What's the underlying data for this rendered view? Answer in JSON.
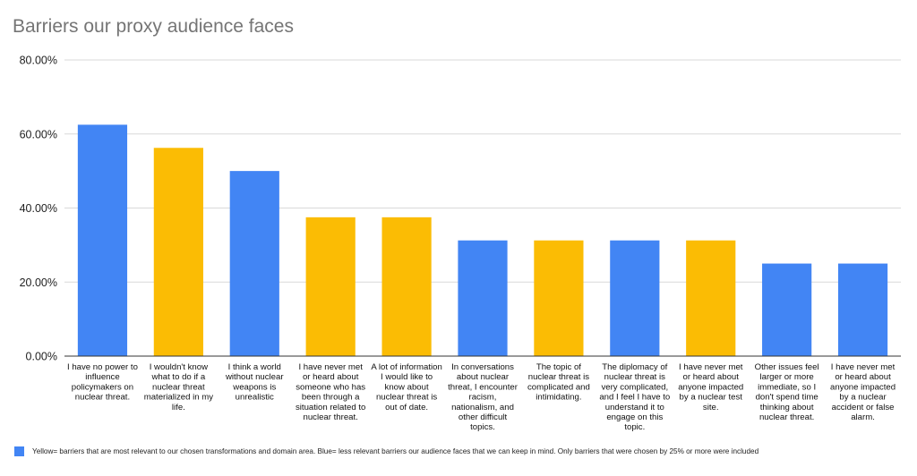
{
  "chart_data": {
    "type": "bar",
    "title": "Barriers our proxy audience faces",
    "ylim": [
      0,
      80
    ],
    "yticks": [
      "80.00%",
      "60.00%",
      "40.00%",
      "20.00%",
      "0.00%"
    ],
    "ytick_values": [
      80,
      60,
      40,
      20,
      0
    ],
    "colors": {
      "blue": "#4285f4",
      "yellow": "#fbbc04"
    },
    "categories": [
      [
        "I have no power to",
        "influence",
        "policymakers on",
        "nuclear threat."
      ],
      [
        "I wouldn't know",
        "what to do if a",
        "nuclear threat",
        "materialized in my",
        "life."
      ],
      [
        "I think a world",
        "without nuclear",
        "weapons is",
        "unrealistic"
      ],
      [
        "I have never met",
        "or heard about",
        "someone who has",
        "been through a",
        "situation related to",
        "nuclear threat."
      ],
      [
        "A lot of information",
        "I would like to",
        "know about",
        "nuclear threat is",
        "out of date."
      ],
      [
        "In conversations",
        "about nuclear",
        "threat, I encounter",
        "racism,",
        "nationalism, and",
        "other difficult",
        "topics."
      ],
      [
        "The topic of",
        "nuclear threat is",
        "complicated and",
        "intimidating."
      ],
      [
        "The diplomacy of",
        "nuclear threat is",
        "very complicated,",
        "and I feel I have to",
        "understand it to",
        "engage on this",
        "topic."
      ],
      [
        "I have never met",
        "or heard about",
        "anyone impacted",
        "by a nuclear test",
        "site."
      ],
      [
        "Other issues feel",
        "larger or more",
        "immediate, so I",
        "don't spend time",
        "thinking about",
        "nuclear threat."
      ],
      [
        "I have never met",
        "or heard about",
        "anyone impacted",
        "by a nuclear",
        "accident or false",
        "alarm."
      ]
    ],
    "values": [
      62.5,
      56.25,
      50,
      37.5,
      37.5,
      31.25,
      31.25,
      31.25,
      31.25,
      25,
      25
    ],
    "bar_colors": [
      "blue",
      "yellow",
      "blue",
      "yellow",
      "yellow",
      "blue",
      "yellow",
      "blue",
      "yellow",
      "blue",
      "blue"
    ],
    "grid": true,
    "legend": {
      "position": "bottom-left",
      "color": "#4285f4",
      "text": "Yellow= barriers that are most relevant to our chosen transformations and domain area. Blue= less relevant barriers our audience faces that we can keep in mind. Only barriers that were chosen by 25% or more were included"
    }
  }
}
